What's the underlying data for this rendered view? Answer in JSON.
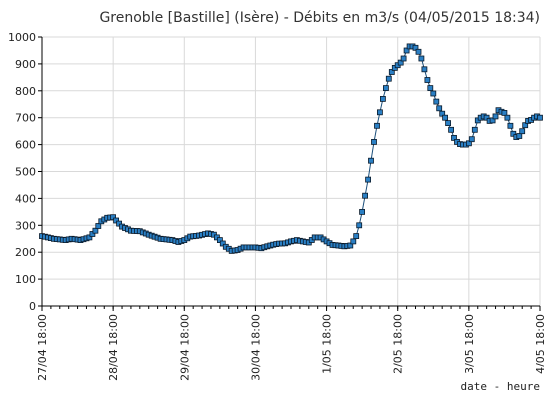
{
  "chart_data": {
    "type": "line",
    "title": "Grenoble [Bastille] (Isère) - Débits en m3/s (04/05/2015 18:34)",
    "xlabel": "date - heure",
    "ylabel": "",
    "ylim": [
      0,
      1000
    ],
    "yticks": [
      0,
      100,
      200,
      300,
      400,
      500,
      600,
      700,
      800,
      900,
      1000
    ],
    "x_tick_labels": [
      "27/04 18:00",
      "28/04 18:00",
      "29/04 18:00",
      "30/04 18:00",
      "1/05 18:00",
      "2/05 18:00",
      "3/05 18:00",
      "4/05 18:00"
    ],
    "x_unit": "hours since 27/04 18:00",
    "xlim": [
      0,
      168
    ],
    "grid": true,
    "colors": {
      "marker_fill": "#2a7fc4",
      "marker_stroke": "#0a1a2a",
      "grid": "#d9d9d9",
      "axis": "#000000"
    },
    "series": [
      {
        "name": "",
        "points": [
          [
            0,
            260
          ],
          [
            4,
            250
          ],
          [
            8,
            245
          ],
          [
            10,
            250
          ],
          [
            13,
            245
          ],
          [
            16,
            255
          ],
          [
            18,
            280
          ],
          [
            20,
            315
          ],
          [
            22,
            328
          ],
          [
            24,
            330
          ],
          [
            25,
            318
          ],
          [
            27,
            295
          ],
          [
            30,
            280
          ],
          [
            33,
            278
          ],
          [
            36,
            265
          ],
          [
            40,
            250
          ],
          [
            44,
            245
          ],
          [
            46,
            238
          ],
          [
            48,
            245
          ],
          [
            50,
            258
          ],
          [
            53,
            262
          ],
          [
            56,
            270
          ],
          [
            58,
            265
          ],
          [
            60,
            245
          ],
          [
            62,
            220
          ],
          [
            64,
            205
          ],
          [
            66,
            208
          ],
          [
            68,
            218
          ],
          [
            70,
            218
          ],
          [
            72,
            218
          ],
          [
            74,
            215
          ],
          [
            76,
            222
          ],
          [
            78,
            228
          ],
          [
            80,
            232
          ],
          [
            82,
            233
          ],
          [
            84,
            240
          ],
          [
            86,
            245
          ],
          [
            88,
            240
          ],
          [
            90,
            236
          ],
          [
            92,
            255
          ],
          [
            94,
            255
          ],
          [
            96,
            240
          ],
          [
            98,
            227
          ],
          [
            100,
            225
          ],
          [
            102,
            222
          ],
          [
            104,
            225
          ],
          [
            105,
            240
          ],
          [
            106,
            260
          ],
          [
            107,
            300
          ],
          [
            108,
            350
          ],
          [
            109,
            410
          ],
          [
            110,
            470
          ],
          [
            111,
            540
          ],
          [
            112,
            610
          ],
          [
            113,
            670
          ],
          [
            114,
            720
          ],
          [
            115,
            770
          ],
          [
            116,
            810
          ],
          [
            117,
            845
          ],
          [
            118,
            870
          ],
          [
            119,
            885
          ],
          [
            120,
            895
          ],
          [
            121,
            905
          ],
          [
            122,
            920
          ],
          [
            123,
            950
          ],
          [
            124,
            965
          ],
          [
            125,
            965
          ],
          [
            126,
            960
          ],
          [
            127,
            945
          ],
          [
            128,
            920
          ],
          [
            129,
            880
          ],
          [
            130,
            840
          ],
          [
            131,
            810
          ],
          [
            132,
            790
          ],
          [
            133,
            760
          ],
          [
            134,
            735
          ],
          [
            135,
            715
          ],
          [
            136,
            700
          ],
          [
            137,
            680
          ],
          [
            138,
            655
          ],
          [
            139,
            625
          ],
          [
            140,
            610
          ],
          [
            141,
            602
          ],
          [
            142,
            600
          ],
          [
            143,
            600
          ],
          [
            144,
            605
          ],
          [
            145,
            620
          ],
          [
            146,
            655
          ],
          [
            147,
            690
          ],
          [
            148,
            700
          ],
          [
            149,
            705
          ],
          [
            150,
            700
          ],
          [
            151,
            688
          ],
          [
            152,
            690
          ],
          [
            153,
            705
          ],
          [
            154,
            728
          ],
          [
            155,
            722
          ],
          [
            156,
            718
          ],
          [
            157,
            700
          ],
          [
            158,
            670
          ],
          [
            159,
            640
          ],
          [
            160,
            628
          ],
          [
            161,
            632
          ],
          [
            162,
            650
          ],
          [
            163,
            672
          ],
          [
            164,
            688
          ],
          [
            165,
            692
          ],
          [
            166,
            700
          ],
          [
            167,
            705
          ],
          [
            168,
            700
          ]
        ]
      }
    ]
  }
}
